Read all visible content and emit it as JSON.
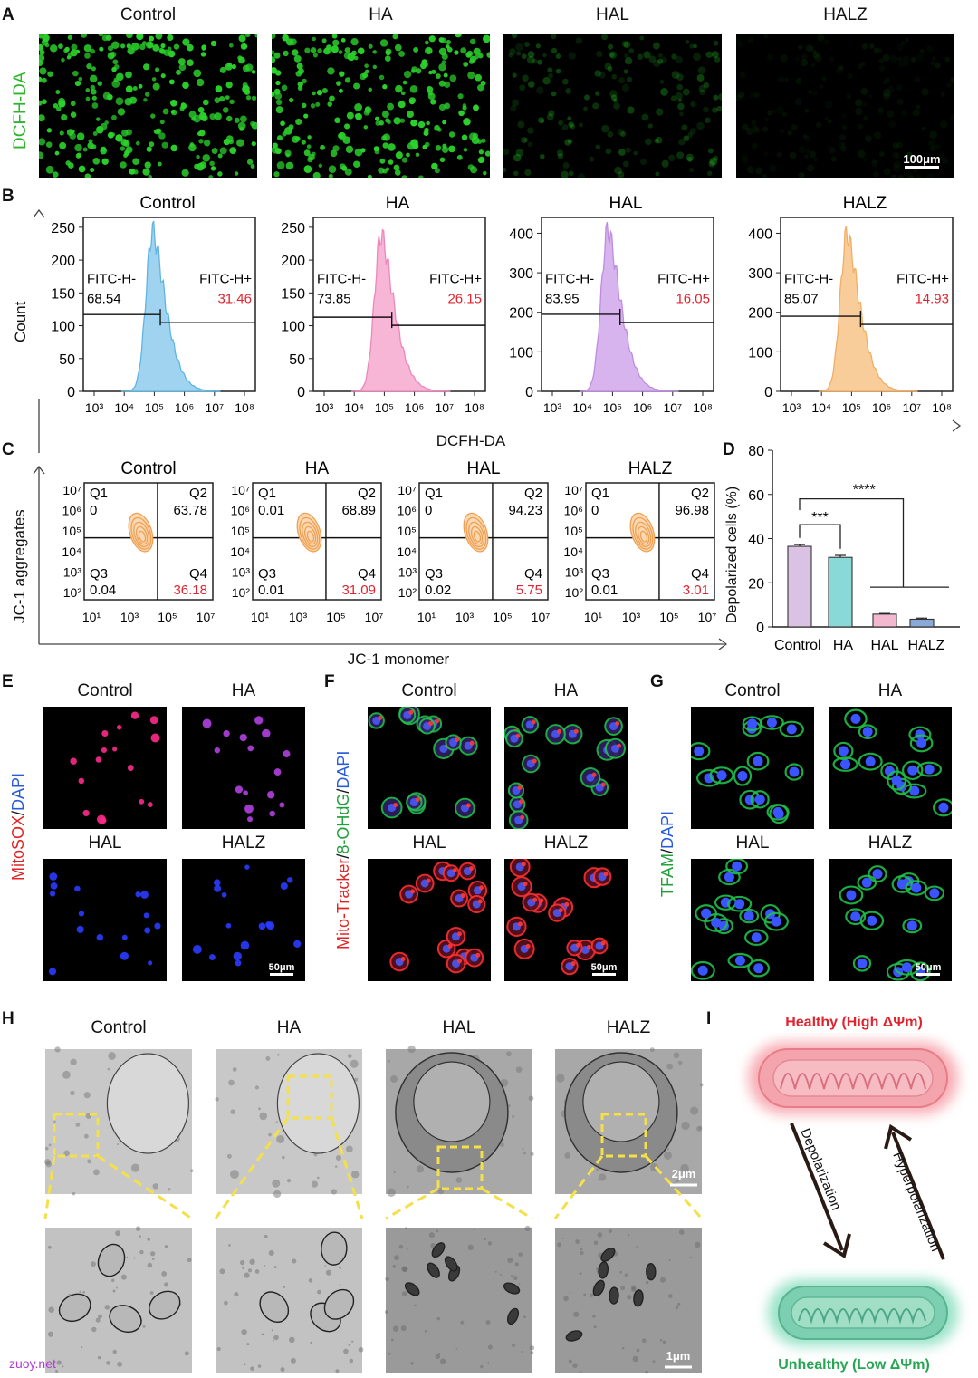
{
  "panels": {
    "a": "A",
    "b": "B",
    "c": "C",
    "d": "D",
    "e": "E",
    "f": "F",
    "g": "G",
    "h": "H",
    "i": "I"
  },
  "groups": [
    "Control",
    "HA",
    "HAL",
    "HALZ"
  ],
  "panel_a": {
    "ylabel": "DCFH-DA",
    "scale_bar": "100μm",
    "colors": {
      "green": "#2bd32b"
    },
    "brightness": [
      1.0,
      1.0,
      0.22,
      0.06
    ]
  },
  "panel_b": {
    "ylabel": "Count",
    "xlabel": "DCFH-DA",
    "gate_neg_label": "FITC-H-",
    "gate_pos_label": "FITC-H+",
    "colors": [
      "#9fd3f0",
      "#f7b6d6",
      "#d7b4ee",
      "#f8cd9a"
    ],
    "strokes": [
      "#5fb5e2",
      "#ee86bb",
      "#bf8ce0",
      "#f2ad63"
    ]
  },
  "panel_c": {
    "ylabel": "JC-1 aggregates",
    "xlabel": "JC-1 monomer",
    "quadrants": [
      "Q1",
      "Q2",
      "Q3",
      "Q4"
    ],
    "values": [
      {
        "q1": "0",
        "q2": "63.78",
        "q3": "0.04",
        "q4": "36.18"
      },
      {
        "q1": "0.01",
        "q2": "68.89",
        "q3": "0.01",
        "q4": "31.09"
      },
      {
        "q1": "0",
        "q2": "94.23",
        "q3": "0.02",
        "q4": "5.75"
      },
      {
        "q1": "0",
        "q2": "96.98",
        "q3": "0.01",
        "q4": "3.01"
      }
    ]
  },
  "panel_e": {
    "label_red": "MitoSOX",
    "label_sep": "/",
    "label_blue": "DAPI",
    "scale_bar": "50μm"
  },
  "panel_f": {
    "label_red": "Mito-Tracker",
    "label_sep1": "/",
    "label_green": "8-OHdG",
    "label_sep2": "/",
    "label_blue": "DAPI",
    "scale_bar": "50μm"
  },
  "panel_g": {
    "label_green": "TFAM",
    "label_sep": "/",
    "label_blue": "DAPI",
    "scale_bar": "50μm"
  },
  "panel_h": {
    "scale_top": "2μm",
    "scale_bottom": "1μm"
  },
  "panel_i": {
    "healthy": "Healthy (High ΔΨm)",
    "unhealthy": "Unhealthy (Low ΔΨm)",
    "depolarization": "Depolarization",
    "hyperpolarization": "Hyperpolarization"
  },
  "watermark": "zuoy.net",
  "chart_data": [
    {
      "type": "area",
      "title": "Control",
      "xlabel": "DCFH-DA",
      "ylabel": "Count",
      "x_ticks": [
        "10³",
        "10⁴",
        "10⁵",
        "10⁶",
        "10⁷",
        "10⁸"
      ],
      "y_ticks": [
        0,
        50,
        100,
        150,
        200,
        250
      ],
      "ylim": [
        0,
        265
      ],
      "gate_neg": "68.54",
      "gate_pos": "31.46",
      "peak_log": 4.95,
      "peak_count": 245,
      "gate_y": 117,
      "gate_split_log": 5.2
    },
    {
      "type": "area",
      "title": "HA",
      "xlabel": "DCFH-DA",
      "ylabel": "Count",
      "x_ticks": [
        "10³",
        "10⁴",
        "10⁵",
        "10⁶",
        "10⁷",
        "10⁸"
      ],
      "y_ticks": [
        0,
        50,
        100,
        150,
        200,
        250
      ],
      "ylim": [
        0,
        265
      ],
      "gate_neg": "73.85",
      "gate_pos": "26.15",
      "peak_log": 4.9,
      "peak_count": 240,
      "gate_y": 113,
      "gate_split_log": 5.25
    },
    {
      "type": "area",
      "title": "HAL",
      "xlabel": "DCFH-DA",
      "ylabel": "Count",
      "x_ticks": [
        "10³",
        "10⁴",
        "10⁵",
        "10⁶",
        "10⁷",
        "10⁸"
      ],
      "y_ticks": [
        0,
        100,
        200,
        300,
        400
      ],
      "ylim": [
        0,
        440
      ],
      "gate_neg": "83.95",
      "gate_pos": "16.05",
      "peak_log": 4.85,
      "peak_count": 410,
      "gate_y": 195,
      "gate_split_log": 5.25
    },
    {
      "type": "area",
      "title": "HALZ",
      "xlabel": "DCFH-DA",
      "ylabel": "Count",
      "x_ticks": [
        "10³",
        "10⁴",
        "10⁵",
        "10⁶",
        "10⁷",
        "10⁸"
      ],
      "y_ticks": [
        0,
        100,
        200,
        300,
        400
      ],
      "ylim": [
        0,
        440
      ],
      "gate_neg": "85.07",
      "gate_pos": "14.93",
      "peak_log": 4.85,
      "peak_count": 400,
      "gate_y": 190,
      "gate_split_log": 5.3
    },
    {
      "type": "bar",
      "ylabel": "Depolarized cells (%)",
      "categories": [
        "Control",
        "HA",
        "HAL",
        "HALZ"
      ],
      "values": [
        36.5,
        31.5,
        5.8,
        3.5
      ],
      "errors": [
        0.8,
        0.9,
        0.3,
        0.5
      ],
      "ylim": [
        0,
        80
      ],
      "y_ticks": [
        0,
        20,
        40,
        60,
        80
      ],
      "colors": [
        "#d9c2e3",
        "#8ad9d9",
        "#f3b8cf",
        "#89a9d6"
      ],
      "significance": [
        {
          "label": "***",
          "groups": [
            "Control",
            "HA"
          ]
        },
        {
          "label": "****",
          "groups": [
            "Control",
            "HAL+HALZ"
          ]
        }
      ]
    }
  ]
}
